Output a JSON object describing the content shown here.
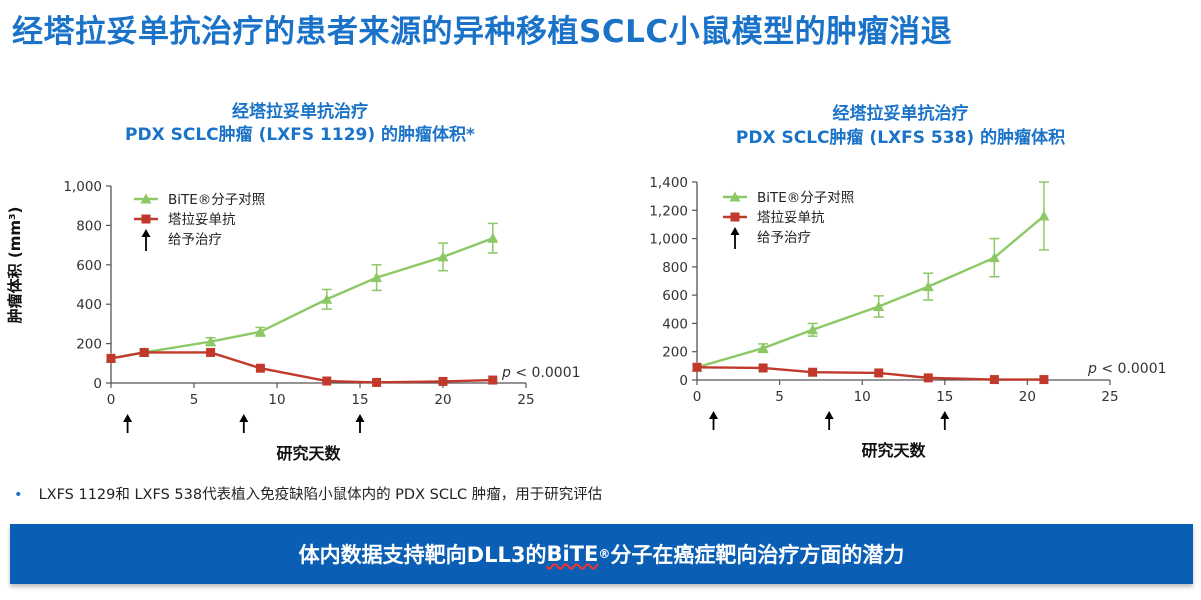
{
  "title": "经塔拉妥单抗治疗的患者来源的异种移植SCLC小鼠模型的肿瘤消退",
  "chart_data": [
    {
      "type": "line",
      "title_line1": "经塔拉妥单抗治疗",
      "title_line2": "PDX SCLC肿瘤 (LXFS 1129) 的肿瘤体积*",
      "ylabel": "肿瘤体积 (mm³)",
      "xlabel": "研究天数",
      "xlim": [
        0,
        25
      ],
      "ylim": [
        0,
        1000
      ],
      "xticks": [
        "0",
        "5",
        "10",
        "15",
        "20",
        "25"
      ],
      "yticks": [
        "0",
        "200",
        "400",
        "600",
        "800",
        "1,000"
      ],
      "yticks_values": [
        0,
        200,
        400,
        600,
        800,
        1000
      ],
      "xticks_values": [
        0,
        5,
        10,
        15,
        20,
        25
      ],
      "series": [
        {
          "name": "BiTE®分子对照",
          "color": "#8cc866",
          "x": [
            0,
            2,
            6,
            9,
            13,
            16,
            20,
            23
          ],
          "y": [
            125,
            155,
            210,
            260,
            425,
            535,
            640,
            735
          ],
          "err": [
            0,
            10,
            20,
            22,
            50,
            65,
            70,
            75
          ]
        },
        {
          "name": "塔拉妥单抗",
          "color": "#c0392b",
          "x": [
            0,
            2,
            6,
            9,
            13,
            16,
            20,
            23
          ],
          "y": [
            125,
            155,
            155,
            75,
            10,
            3,
            8,
            15
          ],
          "err": [
            0,
            0,
            0,
            0,
            0,
            0,
            0,
            0
          ]
        }
      ],
      "dosing_days": [
        1,
        8,
        15
      ],
      "dosing_label": "给予治疗",
      "pvalue_label": "p",
      "pvalue_rest": " < 0.0001",
      "legend_placement": "top-left"
    },
    {
      "type": "line",
      "title_line1": "经塔拉妥单抗治疗",
      "title_line2": "PDX SCLC肿瘤 (LXFS 538) 的肿瘤体积",
      "ylabel": "",
      "xlabel": "研究天数",
      "xlim": [
        0,
        25
      ],
      "ylim": [
        0,
        1400
      ],
      "xticks": [
        "0",
        "5",
        "10",
        "15",
        "20",
        "25"
      ],
      "yticks": [
        "0",
        "200",
        "400",
        "600",
        "800",
        "1,000",
        "1,200",
        "1,400"
      ],
      "yticks_values": [
        0,
        200,
        400,
        600,
        800,
        1000,
        1200,
        1400
      ],
      "xticks_values": [
        0,
        5,
        10,
        15,
        20,
        25
      ],
      "series": [
        {
          "name": "BiTE®分子对照",
          "color": "#8cc866",
          "x": [
            0,
            4,
            7,
            11,
            14,
            18,
            21
          ],
          "y": [
            90,
            225,
            355,
            520,
            660,
            865,
            1160
          ],
          "err": [
            0,
            30,
            45,
            75,
            95,
            135,
            240
          ]
        },
        {
          "name": "塔拉妥单抗",
          "color": "#c0392b",
          "x": [
            0,
            4,
            7,
            11,
            14,
            18,
            21
          ],
          "y": [
            90,
            85,
            55,
            50,
            15,
            3,
            3
          ],
          "err": [
            0,
            0,
            0,
            0,
            0,
            0,
            0
          ]
        }
      ],
      "dosing_days": [
        1,
        8,
        15
      ],
      "dosing_label": "给予治疗",
      "pvalue_label": "p",
      "pvalue_rest": " < 0.0001",
      "legend_placement": "top-left"
    }
  ],
  "footnote": "LXFS 1129和 LXFS 538代表植入免疫缺陷小鼠体内的 PDX SCLC 肿瘤，用于研究评估",
  "banner": {
    "before": "体内数据支持靶向DLL3的",
    "bite": "BiTE",
    "reg": "®",
    "after": "分子在癌症靶向治疗方面的潜力"
  }
}
